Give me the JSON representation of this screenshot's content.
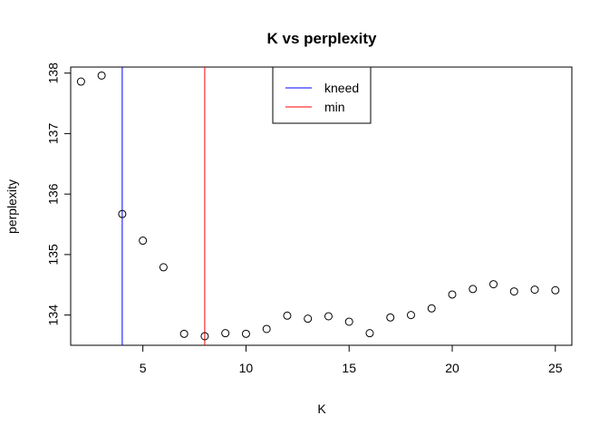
{
  "chart_data": {
    "type": "scatter",
    "title": "K vs perplexity",
    "xlabel": "K",
    "ylabel": "perplexity",
    "xlim": [
      1.5,
      25.8
    ],
    "ylim": [
      133.5,
      138.1
    ],
    "xticks": [
      5,
      10,
      15,
      20,
      25
    ],
    "yticks": [
      134,
      135,
      136,
      137,
      138
    ],
    "x": [
      2,
      3,
      4,
      5,
      6,
      7,
      8,
      9,
      10,
      11,
      12,
      13,
      14,
      15,
      16,
      17,
      18,
      19,
      20,
      21,
      22,
      23,
      24,
      25
    ],
    "y": [
      137.86,
      137.96,
      135.67,
      135.23,
      134.79,
      133.69,
      133.65,
      133.7,
      133.69,
      133.77,
      133.99,
      133.94,
      133.98,
      133.89,
      133.7,
      133.96,
      134.0,
      134.11,
      134.34,
      134.43,
      134.51,
      134.39,
      134.42,
      134.41
    ],
    "vlines": [
      {
        "name": "kneed",
        "x": 4,
        "color": "#0000ff"
      },
      {
        "name": "min",
        "x": 8,
        "color": "#ff0000"
      }
    ],
    "legend": {
      "placement": "top-center",
      "entries": [
        {
          "label": "kneed",
          "color": "#0000ff"
        },
        {
          "label": "min",
          "color": "#ff0000"
        }
      ]
    },
    "grid": false
  }
}
